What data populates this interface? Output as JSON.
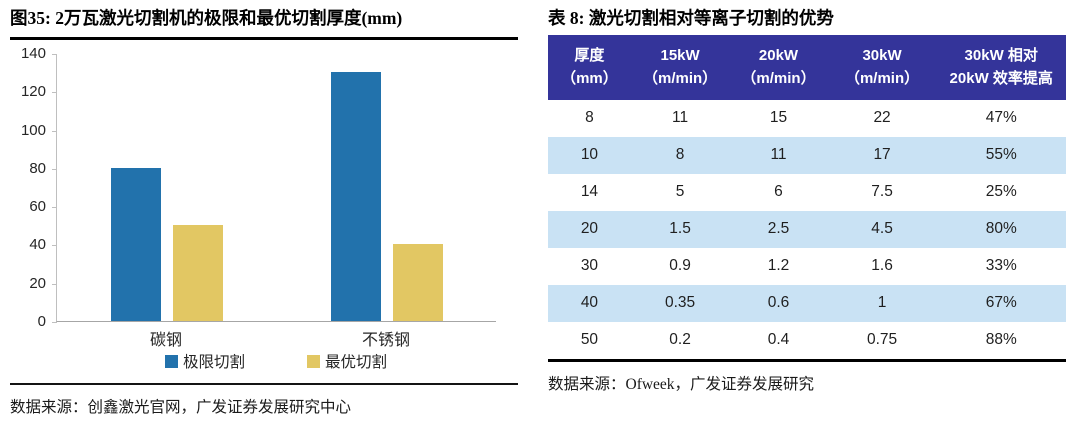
{
  "left_panel": {
    "title": "图35:  2万瓦激光切割机的极限和最优切割厚度(mm)",
    "source": "数据来源：创鑫激光官网，广发证券发展研究中心"
  },
  "right_panel": {
    "title": "表 8:  激光切割相对等离子切割的优势",
    "source": "数据来源：Ofweek，广发证券发展研究"
  },
  "colors": {
    "bar_blue": "#2272AC",
    "bar_yellow": "#E2C763",
    "table_header_bg": "#34349A",
    "table_stripe_bg": "#C9E2F4",
    "axis_line": "#BFBFBF"
  },
  "chart_data": [
    {
      "type": "bar",
      "title": "图35: 2万瓦激光切割机的极限和最优切割厚度(mm)",
      "categories": [
        "碳钢",
        "不锈钢"
      ],
      "series": [
        {
          "name": "极限切割",
          "values": [
            80,
            130
          ],
          "color": "#2272AC"
        },
        {
          "name": "最优切割",
          "values": [
            50,
            40
          ],
          "color": "#E2C763"
        }
      ],
      "xlabel": "",
      "ylabel": "",
      "ylim": [
        0,
        140
      ],
      "ytick_step": 20,
      "grid": false,
      "legend_position": "bottom"
    },
    {
      "type": "table",
      "title": "表 8: 激光切割相对等离子切割的优势",
      "columns": [
        {
          "line1": "厚度",
          "line2": "（mm）"
        },
        {
          "line1": "15kW",
          "line2": "（m/min）"
        },
        {
          "line1": "20kW",
          "line2": "（m/min）"
        },
        {
          "line1": "30kW",
          "line2": "（m/min）"
        },
        {
          "line1": "30kW 相对",
          "line2": "20kW 效率提高"
        }
      ],
      "col_widths": [
        "16%",
        "19%",
        "19%",
        "21%",
        "25%"
      ],
      "rows": [
        [
          "8",
          "11",
          "15",
          "22",
          "47%"
        ],
        [
          "10",
          "8",
          "11",
          "17",
          "55%"
        ],
        [
          "14",
          "5",
          "6",
          "7.5",
          "25%"
        ],
        [
          "20",
          "1.5",
          "2.5",
          "4.5",
          "80%"
        ],
        [
          "30",
          "0.9",
          "1.2",
          "1.6",
          "33%"
        ],
        [
          "40",
          "0.35",
          "0.6",
          "1",
          "67%"
        ],
        [
          "50",
          "0.2",
          "0.4",
          "0.75",
          "88%"
        ]
      ]
    }
  ]
}
